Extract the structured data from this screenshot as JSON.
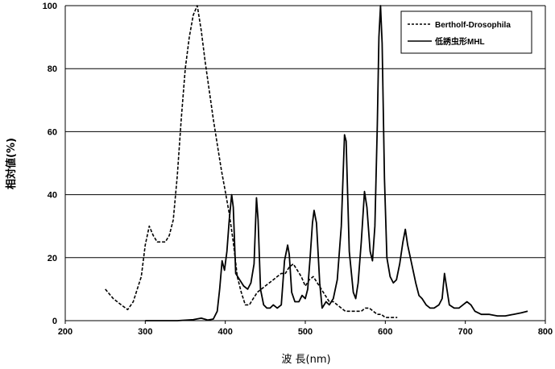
{
  "chart_data": {
    "type": "line",
    "xlabel": "波 長(nm)",
    "ylabel": "相対値(%)",
    "xlim": [
      200,
      800
    ],
    "ylim": [
      0,
      100
    ],
    "xticks": [
      "200",
      "300",
      "400",
      "500",
      "600",
      "700",
      "800"
    ],
    "yticks": [
      "0",
      "20",
      "40",
      "60",
      "80",
      "100"
    ],
    "grid": "horizontal",
    "legend": "top-right",
    "series": [
      {
        "name": "Bertholf-Drosophila",
        "style": "dashed",
        "color": "#000000",
        "points": [
          [
            250,
            10
          ],
          [
            260,
            7
          ],
          [
            270,
            5
          ],
          [
            278,
            3.5
          ],
          [
            285,
            6
          ],
          [
            295,
            14
          ],
          [
            300,
            24
          ],
          [
            305,
            30
          ],
          [
            310,
            27
          ],
          [
            315,
            25
          ],
          [
            320,
            25
          ],
          [
            325,
            25
          ],
          [
            330,
            27
          ],
          [
            335,
            32
          ],
          [
            340,
            46
          ],
          [
            345,
            64
          ],
          [
            350,
            80
          ],
          [
            355,
            90
          ],
          [
            360,
            97
          ],
          [
            365,
            100
          ],
          [
            370,
            92
          ],
          [
            375,
            82
          ],
          [
            380,
            73
          ],
          [
            385,
            64
          ],
          [
            390,
            56
          ],
          [
            395,
            48
          ],
          [
            400,
            41
          ],
          [
            405,
            34
          ],
          [
            410,
            25
          ],
          [
            415,
            14
          ],
          [
            420,
            9
          ],
          [
            425,
            5
          ],
          [
            430,
            5
          ],
          [
            435,
            7
          ],
          [
            440,
            9
          ],
          [
            445,
            10
          ],
          [
            450,
            11
          ],
          [
            455,
            12
          ],
          [
            460,
            13
          ],
          [
            465,
            14
          ],
          [
            470,
            15
          ],
          [
            475,
            15
          ],
          [
            480,
            17
          ],
          [
            485,
            18
          ],
          [
            490,
            16
          ],
          [
            495,
            14
          ],
          [
            500,
            11
          ],
          [
            505,
            13
          ],
          [
            510,
            14
          ],
          [
            515,
            12
          ],
          [
            520,
            10
          ],
          [
            525,
            8
          ],
          [
            530,
            6
          ],
          [
            535,
            6
          ],
          [
            540,
            5
          ],
          [
            545,
            4
          ],
          [
            550,
            3
          ],
          [
            555,
            3
          ],
          [
            560,
            3
          ],
          [
            565,
            3
          ],
          [
            570,
            3
          ],
          [
            575,
            4
          ],
          [
            580,
            4
          ],
          [
            585,
            3
          ],
          [
            590,
            2
          ],
          [
            595,
            2
          ],
          [
            600,
            1
          ],
          [
            605,
            1
          ],
          [
            610,
            1
          ],
          [
            615,
            1
          ]
        ]
      },
      {
        "name": "低誘虫形MHL",
        "style": "solid",
        "color": "#000000",
        "points": [
          [
            300,
            0
          ],
          [
            340,
            0
          ],
          [
            360,
            0.3
          ],
          [
            370,
            0.8
          ],
          [
            378,
            0.2
          ],
          [
            385,
            0.5
          ],
          [
            390,
            3
          ],
          [
            393,
            10
          ],
          [
            396,
            19
          ],
          [
            399,
            16
          ],
          [
            402,
            22
          ],
          [
            405,
            32
          ],
          [
            408,
            40
          ],
          [
            410,
            36
          ],
          [
            413,
            15
          ],
          [
            418,
            13
          ],
          [
            423,
            11
          ],
          [
            428,
            10
          ],
          [
            432,
            12
          ],
          [
            436,
            18
          ],
          [
            439,
            39
          ],
          [
            441,
            32
          ],
          [
            444,
            10
          ],
          [
            448,
            5
          ],
          [
            452,
            4
          ],
          [
            456,
            4
          ],
          [
            460,
            5
          ],
          [
            465,
            4
          ],
          [
            470,
            5
          ],
          [
            474,
            19
          ],
          [
            478,
            24
          ],
          [
            480,
            21
          ],
          [
            483,
            9
          ],
          [
            487,
            6
          ],
          [
            492,
            6
          ],
          [
            496,
            8
          ],
          [
            500,
            7
          ],
          [
            503,
            10
          ],
          [
            506,
            20
          ],
          [
            509,
            31
          ],
          [
            511,
            35
          ],
          [
            514,
            31
          ],
          [
            518,
            12
          ],
          [
            521,
            4
          ],
          [
            526,
            6
          ],
          [
            530,
            5
          ],
          [
            535,
            7
          ],
          [
            540,
            13
          ],
          [
            545,
            30
          ],
          [
            549,
            59
          ],
          [
            551,
            57
          ],
          [
            555,
            22
          ],
          [
            560,
            9
          ],
          [
            563,
            7
          ],
          [
            566,
            12
          ],
          [
            570,
            25
          ],
          [
            574,
            41
          ],
          [
            577,
            36
          ],
          [
            581,
            22
          ],
          [
            584,
            19
          ],
          [
            587,
            30
          ],
          [
            590,
            62
          ],
          [
            592,
            90
          ],
          [
            594,
            100
          ],
          [
            596,
            88
          ],
          [
            599,
            45
          ],
          [
            602,
            20
          ],
          [
            606,
            14
          ],
          [
            610,
            12
          ],
          [
            614,
            13
          ],
          [
            618,
            18
          ],
          [
            622,
            25
          ],
          [
            625,
            29
          ],
          [
            628,
            24
          ],
          [
            633,
            18
          ],
          [
            638,
            12
          ],
          [
            642,
            8
          ],
          [
            646,
            7
          ],
          [
            651,
            5
          ],
          [
            656,
            4
          ],
          [
            661,
            4
          ],
          [
            667,
            5
          ],
          [
            671,
            7
          ],
          [
            674,
            15
          ],
          [
            677,
            10
          ],
          [
            680,
            5
          ],
          [
            686,
            4
          ],
          [
            692,
            4
          ],
          [
            697,
            5
          ],
          [
            702,
            6
          ],
          [
            707,
            5
          ],
          [
            712,
            3
          ],
          [
            720,
            2
          ],
          [
            730,
            2
          ],
          [
            740,
            1.5
          ],
          [
            750,
            1.5
          ],
          [
            760,
            2
          ],
          [
            770,
            2.5
          ],
          [
            778,
            3
          ]
        ]
      }
    ]
  }
}
